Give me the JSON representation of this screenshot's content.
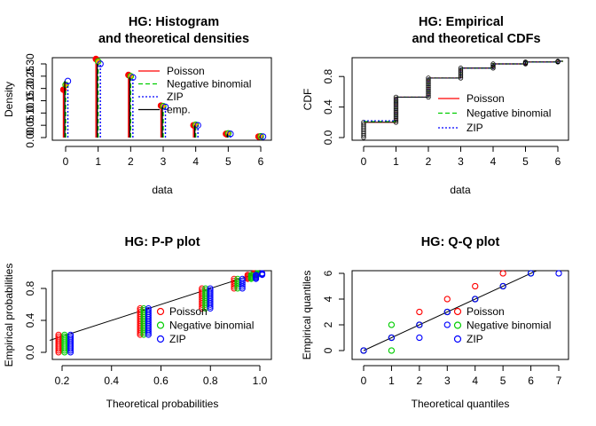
{
  "colors": {
    "poisson": "#ff0000",
    "negbin": "#00cd00",
    "zip": "#0000ff",
    "emp": "#000000",
    "orange": "#ffa500"
  },
  "chart_data": [
    {
      "type": "bar",
      "title": "HG: Histogram",
      "subtitle": "and theoretical densities",
      "xlabel": "data",
      "ylabel": "Density",
      "categories": [
        0,
        1,
        2,
        3,
        4,
        5,
        6
      ],
      "xlim": [
        0,
        6
      ],
      "ylim": [
        0,
        0.33
      ],
      "xticks": [
        "0",
        "1",
        "2",
        "3",
        "4",
        "5",
        "6"
      ],
      "yticks": [
        "0.00",
        "0.05",
        "0.10",
        "0.15",
        "0.20",
        "0.25",
        "0.30"
      ],
      "series": [
        {
          "name": "Poisson",
          "values": [
            0.195,
            0.32,
            0.255,
            0.13,
            0.05,
            0.015,
            0.004
          ]
        },
        {
          "name": "Negative binomial",
          "values": [
            0.215,
            0.31,
            0.25,
            0.128,
            0.052,
            0.017,
            0.005
          ]
        },
        {
          "name": "ZIP",
          "values": [
            0.23,
            0.3,
            0.245,
            0.125,
            0.05,
            0.015,
            0.004
          ]
        },
        {
          "name": "emp.",
          "values": [
            0.23,
            0.3,
            0.245,
            0.125,
            0.05,
            0.015,
            0.004
          ]
        }
      ],
      "legend": [
        "Poisson",
        "Negative binomial",
        "ZIP",
        "emp."
      ],
      "legend_position": "top-right"
    },
    {
      "type": "line",
      "title": "HG: Empirical",
      "subtitle": "and theoretical CDFs",
      "xlabel": "data",
      "ylabel": "CDF",
      "xlim": [
        0,
        6
      ],
      "ylim": [
        0,
        1
      ],
      "xticks": [
        "0",
        "1",
        "2",
        "3",
        "4",
        "5",
        "6"
      ],
      "yticks": [
        "0.0",
        "0.4",
        "0.8"
      ],
      "x": [
        0,
        1,
        2,
        3,
        4,
        5,
        6
      ],
      "series": [
        {
          "name": "Poisson",
          "values": [
            0.2,
            0.53,
            0.78,
            0.91,
            0.965,
            0.99,
            1.0
          ]
        },
        {
          "name": "Negative binomial",
          "values": [
            0.21,
            0.53,
            0.78,
            0.91,
            0.965,
            0.99,
            1.0
          ]
        },
        {
          "name": "ZIP",
          "values": [
            0.22,
            0.53,
            0.78,
            0.91,
            0.965,
            0.99,
            1.0
          ]
        }
      ],
      "legend": [
        "Poisson",
        "Negative binomial",
        "ZIP"
      ],
      "legend_position": "right"
    },
    {
      "type": "scatter",
      "title": "HG: P-P plot",
      "xlabel": "Theoretical probabilities",
      "ylabel": "Empirical probabilities",
      "xlim": [
        0.15,
        1.0
      ],
      "ylim": [
        0,
        1
      ],
      "xticks": [
        "0.2",
        "0.4",
        "0.6",
        "0.8",
        "1.0"
      ],
      "yticks": [
        "0.0",
        "0.4",
        "0.8"
      ],
      "groups": [
        {
          "name": "Poisson",
          "points": [
            [
              0.2,
              0.0,
              0.22
            ],
            [
              0.53,
              0.22,
              0.55
            ],
            [
              0.78,
              0.55,
              0.8
            ],
            [
              0.91,
              0.8,
              0.92
            ],
            [
              0.965,
              0.92,
              0.97
            ],
            [
              0.99,
              0.97,
              0.99
            ]
          ]
        },
        {
          "name": "Negative binomial",
          "points": [
            [
              0.21,
              0.0,
              0.22
            ],
            [
              0.53,
              0.22,
              0.55
            ],
            [
              0.78,
              0.55,
              0.8
            ],
            [
              0.91,
              0.8,
              0.92
            ],
            [
              0.965,
              0.92,
              0.97
            ],
            [
              0.99,
              0.97,
              0.99
            ]
          ]
        },
        {
          "name": "ZIP",
          "points": [
            [
              0.22,
              0.0,
              0.22
            ],
            [
              0.535,
              0.22,
              0.55
            ],
            [
              0.785,
              0.55,
              0.8
            ],
            [
              0.915,
              0.8,
              0.92
            ],
            [
              0.97,
              0.92,
              0.97
            ],
            [
              0.995,
              0.97,
              0.99
            ]
          ]
        }
      ],
      "legend": [
        "Poisson",
        "Negative binomial",
        "ZIP"
      ],
      "legend_position": "right"
    },
    {
      "type": "scatter",
      "title": "HG: Q-Q plot",
      "xlabel": "Theoretical quantiles",
      "ylabel": "Empirical quantiles",
      "xlim": [
        0,
        7
      ],
      "ylim": [
        0,
        6
      ],
      "xticks": [
        "0",
        "1",
        "2",
        "3",
        "4",
        "5",
        "6",
        "7"
      ],
      "yticks": [
        "0",
        "2",
        "4",
        "6"
      ],
      "series": [
        {
          "name": "Poisson",
          "points": [
            [
              0,
              0
            ],
            [
              1,
              1
            ],
            [
              2,
              2
            ],
            [
              2,
              3
            ],
            [
              3,
              3
            ],
            [
              3,
              4
            ],
            [
              4,
              4
            ],
            [
              4,
              5
            ],
            [
              5,
              5
            ],
            [
              5,
              6
            ]
          ]
        },
        {
          "name": "Negative binomial",
          "points": [
            [
              0,
              0
            ],
            [
              1,
              0
            ],
            [
              1,
              1
            ],
            [
              1,
              2
            ],
            [
              2,
              2
            ],
            [
              3,
              3
            ],
            [
              4,
              4
            ],
            [
              5,
              5
            ],
            [
              6,
              6
            ]
          ]
        },
        {
          "name": "ZIP",
          "points": [
            [
              0,
              0
            ],
            [
              1,
              1
            ],
            [
              2,
              1
            ],
            [
              2,
              2
            ],
            [
              3,
              2
            ],
            [
              3,
              3
            ],
            [
              4,
              4
            ],
            [
              5,
              5
            ],
            [
              6,
              6
            ],
            [
              7,
              6
            ]
          ]
        }
      ],
      "legend": [
        "Poisson",
        "Negative binomial",
        "ZIP"
      ],
      "legend_position": "right"
    }
  ]
}
